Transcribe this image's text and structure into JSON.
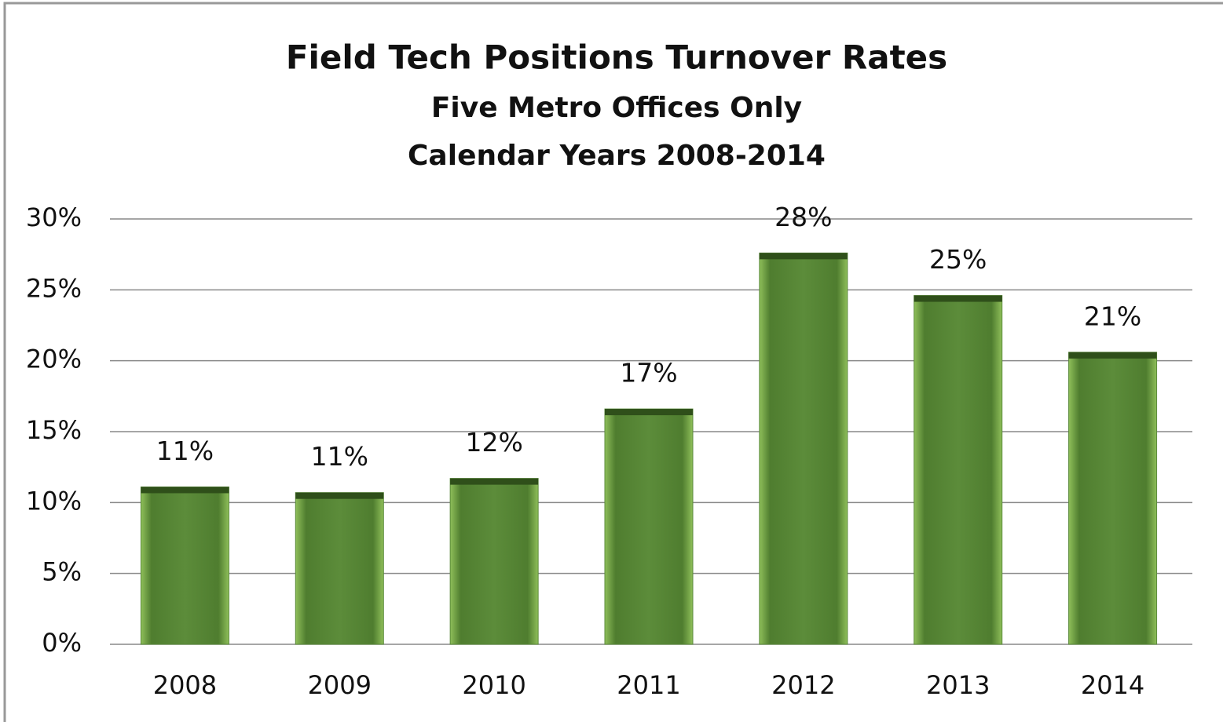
{
  "chart_data": {
    "type": "bar",
    "title": "Field Tech Positions Turnover Rates",
    "subtitle": [
      "Five Metro Offices Only",
      "Calendar Years 2008-2014"
    ],
    "categories": [
      "2008",
      "2009",
      "2010",
      "2011",
      "2012",
      "2013",
      "2014"
    ],
    "values": [
      11.1,
      10.7,
      11.7,
      16.6,
      27.6,
      24.6,
      20.6
    ],
    "value_labels": [
      "11%",
      "11%",
      "12%",
      "17%",
      "28%",
      "25%",
      "21%"
    ],
    "color": "#5a8a3a",
    "ylim": [
      0,
      30
    ],
    "yticks": [
      {
        "value": 0,
        "label": "0%"
      },
      {
        "value": 5,
        "label": "5%"
      },
      {
        "value": 10,
        "label": "10%"
      },
      {
        "value": 15,
        "label": "15%"
      },
      {
        "value": 20,
        "label": "20%"
      },
      {
        "value": 25,
        "label": "25%"
      },
      {
        "value": 30,
        "label": "30%"
      }
    ],
    "grid": true
  }
}
